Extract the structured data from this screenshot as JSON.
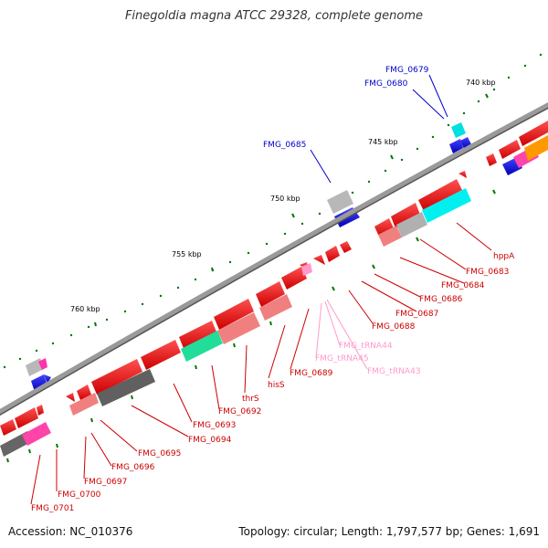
{
  "title": "Finegoldia magna ATCC 29328, complete genome",
  "footer": {
    "accession": "Accession: NC_010376",
    "topology": "Topology: circular; Length: 1,797,577 bp; Genes: 1,691"
  },
  "scale_labels": [
    "740 kbp",
    "745 kbp",
    "750 kbp",
    "755 kbp",
    "760 kbp"
  ],
  "forward_labels": [
    "FMG_0679",
    "FMG_0680",
    "FMG_0685"
  ],
  "reverse_labels": [
    "hppA",
    "FMG_0683",
    "FMG_0684",
    "FMG_0686",
    "FMG_0687",
    "FMG_0688",
    "FMG_0689",
    "hisS",
    "thrS",
    "FMG_0692",
    "FMG_0693",
    "FMG_0694",
    "FMG_0695",
    "FMG_0696",
    "FMG_0697",
    "FMG_0700",
    "FMG_0701"
  ],
  "trna_labels": [
    "FMG_tRNA44",
    "FMG_tRNA45",
    "FMG_tRNA43"
  ],
  "colors": {
    "forward_label": "#0000cc",
    "reverse_label": "#cc0000",
    "trna_label": "#ff99cc",
    "gene": "#ee0000",
    "backbone": "#888888",
    "tick": "#007700"
  }
}
